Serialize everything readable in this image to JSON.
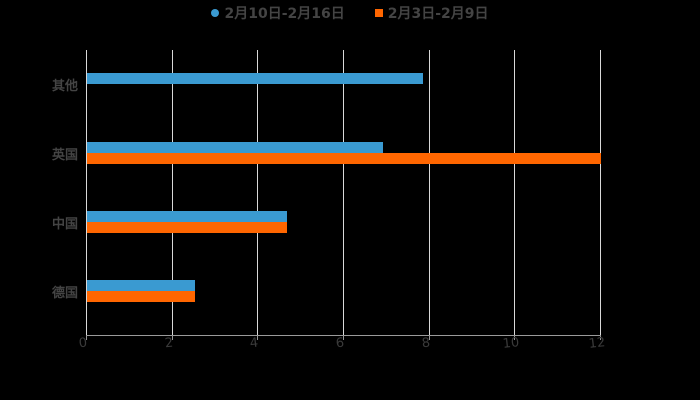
{
  "chart_data": {
    "type": "bar",
    "orientation": "horizontal",
    "title": "",
    "xlabel": "",
    "ylabel": "",
    "categories": [
      "其他",
      "英国",
      "中国",
      "德国"
    ],
    "series": [
      {
        "name": "2月10日-2月16日",
        "color": "#3a9ad1",
        "values": [
          7.85,
          6.9,
          4.67,
          2.52
        ]
      },
      {
        "name": "2月3日-2月9日",
        "color": "#ff6600",
        "values": [
          null,
          12,
          4.67,
          2.52
        ]
      }
    ],
    "xlim": [
      0,
      12
    ],
    "x_ticks": [
      "0",
      "2",
      "4",
      "6",
      "8",
      "10",
      "12"
    ],
    "grid": true,
    "legend_position": "top"
  },
  "legend": {
    "items": [
      {
        "label": "2月10日-2月16日",
        "color": "#3a9ad1"
      },
      {
        "label": "2月3日-2月9日",
        "color": "#ff6600"
      }
    ]
  }
}
